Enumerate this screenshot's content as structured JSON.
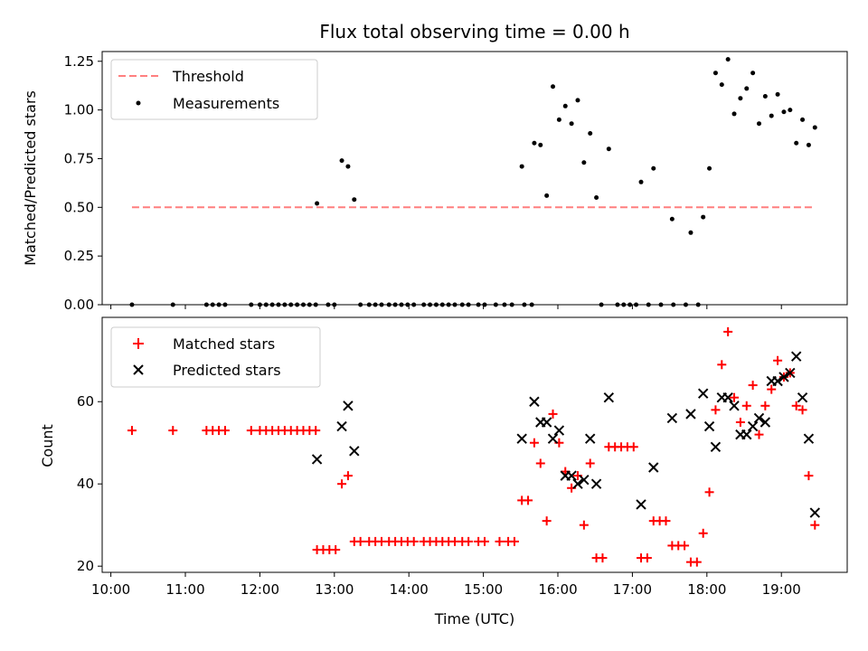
{
  "chart_data": [
    {
      "type": "scatter",
      "title": "Flux total observing time = 0.00 h",
      "ylabel": "Matched/Predicted stars",
      "xlabel": "",
      "xlim": [
        "09:53",
        "19:53"
      ],
      "ylim": [
        0,
        1.3
      ],
      "yticks": [
        "0.00",
        "0.25",
        "0.50",
        "0.75",
        "1.00",
        "1.25"
      ],
      "grid": false,
      "legend_position": "top-left",
      "series": [
        {
          "name": "Threshold",
          "kind": "dashed-line",
          "color": "#ff7f7f",
          "x": [
            "10:17",
            "19:27"
          ],
          "y": [
            0.5,
            0.5
          ]
        },
        {
          "name": "Measurements",
          "kind": "points",
          "color": "#000000",
          "points": [
            [
              "10:17",
              0
            ],
            [
              "10:50",
              0
            ],
            [
              "11:17",
              0
            ],
            [
              "11:22",
              0
            ],
            [
              "11:27",
              0
            ],
            [
              "11:32",
              0
            ],
            [
              "11:53",
              0
            ],
            [
              "12:00",
              0
            ],
            [
              "12:05",
              0
            ],
            [
              "12:10",
              0
            ],
            [
              "12:15",
              0
            ],
            [
              "12:20",
              0
            ],
            [
              "12:25",
              0
            ],
            [
              "12:30",
              0
            ],
            [
              "12:35",
              0
            ],
            [
              "12:40",
              0
            ],
            [
              "12:45",
              0
            ],
            [
              "12:46",
              0.52
            ],
            [
              "12:55",
              0
            ],
            [
              "13:00",
              0
            ],
            [
              "13:06",
              0.74
            ],
            [
              "13:11",
              0.71
            ],
            [
              "13:16",
              0.54
            ],
            [
              "13:21",
              0
            ],
            [
              "13:28",
              0
            ],
            [
              "13:33",
              0
            ],
            [
              "13:38",
              0
            ],
            [
              "13:44",
              0
            ],
            [
              "13:49",
              0
            ],
            [
              "13:54",
              0
            ],
            [
              "13:59",
              0
            ],
            [
              "14:04",
              0
            ],
            [
              "14:12",
              0
            ],
            [
              "14:17",
              0
            ],
            [
              "14:22",
              0
            ],
            [
              "14:27",
              0
            ],
            [
              "14:32",
              0
            ],
            [
              "14:37",
              0
            ],
            [
              "14:43",
              0
            ],
            [
              "14:48",
              0
            ],
            [
              "14:56",
              0
            ],
            [
              "15:01",
              0
            ],
            [
              "15:10",
              0
            ],
            [
              "15:17",
              0
            ],
            [
              "15:23",
              0
            ],
            [
              "15:33",
              0
            ],
            [
              "15:39",
              0
            ],
            [
              "15:31",
              0.71
            ],
            [
              "15:41",
              0.83
            ],
            [
              "15:46",
              0.82
            ],
            [
              "15:51",
              0.56
            ],
            [
              "15:56",
              1.12
            ],
            [
              "16:01",
              0.95
            ],
            [
              "16:06",
              1.02
            ],
            [
              "16:11",
              0.93
            ],
            [
              "16:16",
              1.05
            ],
            [
              "16:21",
              0.73
            ],
            [
              "16:26",
              0.88
            ],
            [
              "16:31",
              0.55
            ],
            [
              "16:41",
              0.8
            ],
            [
              "16:35",
              0
            ],
            [
              "16:48",
              0
            ],
            [
              "16:53",
              0
            ],
            [
              "16:58",
              0
            ],
            [
              "17:03",
              0
            ],
            [
              "17:13",
              0
            ],
            [
              "17:23",
              0
            ],
            [
              "17:33",
              0
            ],
            [
              "17:43",
              0
            ],
            [
              "17:53",
              0
            ],
            [
              "17:07",
              0.63
            ],
            [
              "17:17",
              0.7
            ],
            [
              "17:32",
              0.44
            ],
            [
              "17:47",
              0.37
            ],
            [
              "17:57",
              0.45
            ],
            [
              "18:02",
              0.7
            ],
            [
              "18:07",
              1.19
            ],
            [
              "18:12",
              1.13
            ],
            [
              "18:17",
              1.26
            ],
            [
              "18:22",
              0.98
            ],
            [
              "18:27",
              1.06
            ],
            [
              "18:32",
              1.11
            ],
            [
              "18:37",
              1.19
            ],
            [
              "18:42",
              0.93
            ],
            [
              "18:47",
              1.07
            ],
            [
              "18:52",
              0.97
            ],
            [
              "18:57",
              1.08
            ],
            [
              "19:02",
              0.99
            ],
            [
              "19:07",
              1.0
            ],
            [
              "19:12",
              0.83
            ],
            [
              "19:17",
              0.95
            ],
            [
              "19:22",
              0.82
            ],
            [
              "19:27",
              0.91
            ]
          ]
        }
      ]
    },
    {
      "type": "scatter",
      "title": "",
      "ylabel": "Count",
      "xlabel": "Time (UTC)",
      "xlim": [
        "09:53",
        "19:53"
      ],
      "xticks": [
        "10:00",
        "11:00",
        "12:00",
        "13:00",
        "14:00",
        "15:00",
        "16:00",
        "17:00",
        "18:00",
        "19:00"
      ],
      "ylim": [
        18.5,
        80.5
      ],
      "yticks": [
        "20",
        "40",
        "60"
      ],
      "grid": false,
      "legend_position": "top-left",
      "series": [
        {
          "name": "Matched stars",
          "marker": "plus",
          "color": "#ff0000",
          "points": [
            [
              "10:17",
              53
            ],
            [
              "10:50",
              53
            ],
            [
              "11:17",
              53
            ],
            [
              "11:22",
              53
            ],
            [
              "11:27",
              53
            ],
            [
              "11:32",
              53
            ],
            [
              "11:53",
              53
            ],
            [
              "12:00",
              53
            ],
            [
              "12:05",
              53
            ],
            [
              "12:10",
              53
            ],
            [
              "12:15",
              53
            ],
            [
              "12:20",
              53
            ],
            [
              "12:25",
              53
            ],
            [
              "12:30",
              53
            ],
            [
              "12:35",
              53
            ],
            [
              "12:40",
              53
            ],
            [
              "12:45",
              53
            ],
            [
              "12:46",
              24
            ],
            [
              "12:51",
              24
            ],
            [
              "12:56",
              24
            ],
            [
              "13:01",
              24
            ],
            [
              "13:06",
              40
            ],
            [
              "13:11",
              42
            ],
            [
              "13:16",
              26
            ],
            [
              "13:21",
              26
            ],
            [
              "13:28",
              26
            ],
            [
              "13:33",
              26
            ],
            [
              "13:38",
              26
            ],
            [
              "13:44",
              26
            ],
            [
              "13:49",
              26
            ],
            [
              "13:54",
              26
            ],
            [
              "13:59",
              26
            ],
            [
              "14:04",
              26
            ],
            [
              "14:12",
              26
            ],
            [
              "14:17",
              26
            ],
            [
              "14:22",
              26
            ],
            [
              "14:27",
              26
            ],
            [
              "14:32",
              26
            ],
            [
              "14:37",
              26
            ],
            [
              "14:43",
              26
            ],
            [
              "14:48",
              26
            ],
            [
              "14:56",
              26
            ],
            [
              "15:01",
              26
            ],
            [
              "15:13",
              26
            ],
            [
              "15:20",
              26
            ],
            [
              "15:25",
              26
            ],
            [
              "15:31",
              36
            ],
            [
              "15:36",
              36
            ],
            [
              "15:41",
              50
            ],
            [
              "15:46",
              45
            ],
            [
              "15:51",
              31
            ],
            [
              "15:56",
              57
            ],
            [
              "16:01",
              50
            ],
            [
              "16:06",
              43
            ],
            [
              "16:11",
              39
            ],
            [
              "16:16",
              42
            ],
            [
              "16:21",
              30
            ],
            [
              "16:26",
              45
            ],
            [
              "16:31",
              22
            ],
            [
              "16:36",
              22
            ],
            [
              "16:41",
              49
            ],
            [
              "16:46",
              49
            ],
            [
              "16:51",
              49
            ],
            [
              "16:56",
              49
            ],
            [
              "17:01",
              49
            ],
            [
              "17:07",
              22
            ],
            [
              "17:12",
              22
            ],
            [
              "17:17",
              31
            ],
            [
              "17:22",
              31
            ],
            [
              "17:27",
              31
            ],
            [
              "17:32",
              25
            ],
            [
              "17:37",
              25
            ],
            [
              "17:42",
              25
            ],
            [
              "17:47",
              21
            ],
            [
              "17:52",
              21
            ],
            [
              "17:57",
              28
            ],
            [
              "18:02",
              38
            ],
            [
              "18:07",
              58
            ],
            [
              "18:12",
              69
            ],
            [
              "18:17",
              77
            ],
            [
              "18:22",
              61
            ],
            [
              "18:27",
              55
            ],
            [
              "18:32",
              59
            ],
            [
              "18:37",
              64
            ],
            [
              "18:42",
              52
            ],
            [
              "18:47",
              59
            ],
            [
              "18:52",
              63
            ],
            [
              "18:57",
              70
            ],
            [
              "19:02",
              66
            ],
            [
              "19:07",
              67
            ],
            [
              "19:12",
              59
            ],
            [
              "19:17",
              58
            ],
            [
              "19:22",
              42
            ],
            [
              "19:27",
              30
            ]
          ]
        },
        {
          "name": "Predicted stars",
          "marker": "x",
          "color": "#000000",
          "points": [
            [
              "12:46",
              46
            ],
            [
              "13:06",
              54
            ],
            [
              "13:11",
              59
            ],
            [
              "13:16",
              48
            ],
            [
              "15:31",
              51
            ],
            [
              "15:41",
              60
            ],
            [
              "15:46",
              55
            ],
            [
              "15:51",
              55
            ],
            [
              "15:56",
              51
            ],
            [
              "16:01",
              53
            ],
            [
              "16:06",
              42
            ],
            [
              "16:11",
              42
            ],
            [
              "16:16",
              40
            ],
            [
              "16:21",
              41
            ],
            [
              "16:26",
              51
            ],
            [
              "16:31",
              40
            ],
            [
              "16:41",
              61
            ],
            [
              "17:07",
              35
            ],
            [
              "17:17",
              44
            ],
            [
              "17:32",
              56
            ],
            [
              "17:47",
              57
            ],
            [
              "17:57",
              62
            ],
            [
              "18:02",
              54
            ],
            [
              "18:07",
              49
            ],
            [
              "18:12",
              61
            ],
            [
              "18:17",
              61
            ],
            [
              "18:22",
              59
            ],
            [
              "18:27",
              52
            ],
            [
              "18:32",
              52
            ],
            [
              "18:37",
              54
            ],
            [
              "18:42",
              56
            ],
            [
              "18:47",
              55
            ],
            [
              "18:52",
              65
            ],
            [
              "18:57",
              65
            ],
            [
              "19:02",
              66
            ],
            [
              "19:07",
              67
            ],
            [
              "19:12",
              71
            ],
            [
              "19:17",
              61
            ],
            [
              "19:22",
              51
            ],
            [
              "19:27",
              33
            ]
          ]
        }
      ]
    }
  ]
}
